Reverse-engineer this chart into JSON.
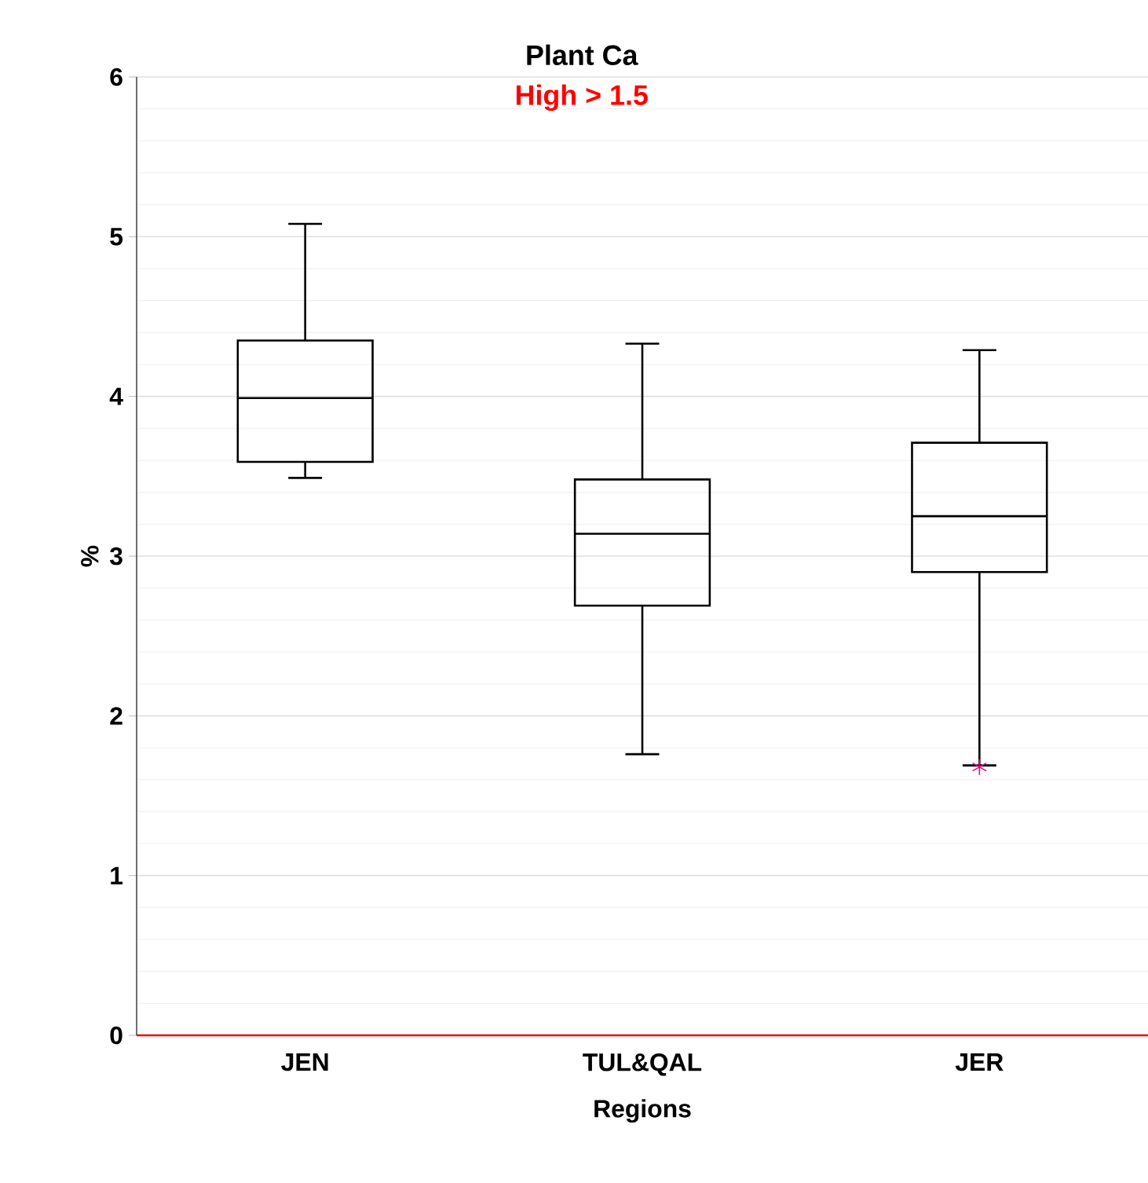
{
  "chart_data": {
    "type": "box",
    "title": "Plant Ca",
    "subtitle": "High > 1.5",
    "xlabel": "Regions",
    "ylabel": "%",
    "categories": [
      "JEN",
      "TUL&QAL",
      "JER"
    ],
    "boxes": [
      {
        "low": 3.49,
        "q1": 3.59,
        "median": 3.99,
        "q3": 4.35,
        "high": 5.08
      },
      {
        "low": 1.76,
        "q1": 2.69,
        "median": 3.14,
        "q3": 3.48,
        "high": 4.33
      },
      {
        "low": 1.69,
        "q1": 2.9,
        "median": 3.25,
        "q3": 3.71,
        "high": 4.29,
        "outliers": [
          1.68
        ]
      }
    ],
    "color": "#000000",
    "ylim": [
      0,
      6
    ],
    "yticks": [
      0,
      1,
      2,
      3,
      4,
      5,
      6
    ],
    "grid": "y"
  }
}
